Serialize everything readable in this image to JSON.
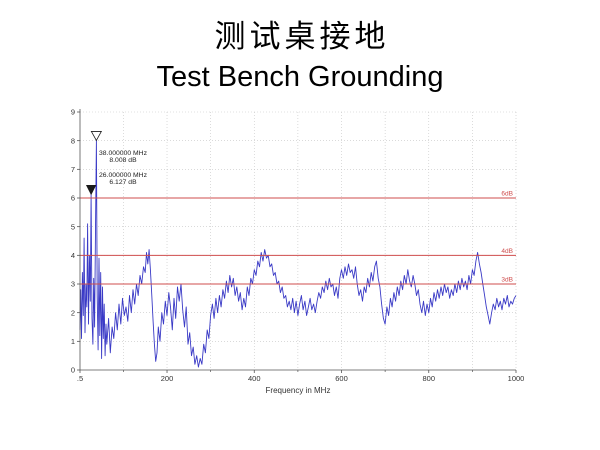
{
  "slide": {
    "title_cn": "测试桌接地",
    "title_en": "Test Bench Grounding"
  },
  "colors": {
    "trace": "#3a3ac6",
    "threshold": "#cf4d4d",
    "grid": "#c4c4c4",
    "axis": "#555555",
    "marker": "#1a1a1a"
  },
  "chart_data": {
    "type": "line",
    "xlabel": "Frequency in MHz",
    "xlim": [
      0.5,
      1000
    ],
    "ylim": [
      0,
      9
    ],
    "grid": true,
    "x_ticks": [
      {
        "value": 0.5,
        "label": ".5"
      },
      {
        "value": 200,
        "label": "200"
      },
      {
        "value": 400,
        "label": "400"
      },
      {
        "value": 600,
        "label": "600"
      },
      {
        "value": 800,
        "label": "800"
      },
      {
        "value": 1000,
        "label": "1000"
      }
    ],
    "y_ticks": [
      {
        "value": 0,
        "label": "0"
      },
      {
        "value": 1,
        "label": "1"
      },
      {
        "value": 2,
        "label": "2"
      },
      {
        "value": 3,
        "label": "3"
      },
      {
        "value": 4,
        "label": "4"
      },
      {
        "value": 5,
        "label": "5"
      },
      {
        "value": 6,
        "label": "6"
      },
      {
        "value": 7,
        "label": "7"
      },
      {
        "value": 8,
        "label": "8"
      },
      {
        "value": 9,
        "label": "9"
      }
    ],
    "threshold_lines": [
      {
        "value": 6,
        "label": "6dB"
      },
      {
        "value": 4,
        "label": "4dB"
      },
      {
        "value": 3,
        "label": "3dB"
      }
    ],
    "markers": [
      {
        "x": 38,
        "y": 8.008,
        "freq_label": "38.000000 MHz",
        "level_label": "8.008 dB",
        "icon": "triangle-down-outline"
      },
      {
        "x": 26,
        "y": 6.127,
        "freq_label": "26.000000 MHz",
        "level_label": "6.127 dB",
        "icon": "triangle-down-filled"
      }
    ],
    "points": [
      [
        0.5,
        1.4
      ],
      [
        2,
        2.8
      ],
      [
        4,
        1.1
      ],
      [
        6,
        3.4
      ],
      [
        8,
        1.9
      ],
      [
        10,
        4.6
      ],
      [
        12,
        1.3
      ],
      [
        14,
        3.0
      ],
      [
        16,
        2.2
      ],
      [
        18,
        5.1
      ],
      [
        20,
        1.6
      ],
      [
        22,
        4.0
      ],
      [
        24,
        2.4
      ],
      [
        26,
        6.127
      ],
      [
        28,
        1.8
      ],
      [
        30,
        0.9
      ],
      [
        32,
        3.2
      ],
      [
        34,
        1.5
      ],
      [
        36,
        4.9
      ],
      [
        38,
        8.008
      ],
      [
        40,
        2.6
      ],
      [
        42,
        0.7
      ],
      [
        44,
        3.9
      ],
      [
        46,
        1.2
      ],
      [
        48,
        3.4
      ],
      [
        50,
        0.4
      ],
      [
        52,
        2.9
      ],
      [
        54,
        1.1
      ],
      [
        56,
        2.3
      ],
      [
        58,
        0.5
      ],
      [
        60,
        1.6
      ],
      [
        62,
        0.9
      ],
      [
        66,
        1.8
      ],
      [
        70,
        0.6
      ],
      [
        74,
        1.5
      ],
      [
        78,
        1.1
      ],
      [
        82,
        2.0
      ],
      [
        86,
        1.4
      ],
      [
        90,
        2.3
      ],
      [
        94,
        1.6
      ],
      [
        98,
        2.5
      ],
      [
        102,
        1.9
      ],
      [
        106,
        2.2
      ],
      [
        110,
        1.7
      ],
      [
        114,
        2.6
      ],
      [
        118,
        2.0
      ],
      [
        122,
        2.8
      ],
      [
        126,
        2.3
      ],
      [
        130,
        3.0
      ],
      [
        134,
        2.6
      ],
      [
        138,
        3.3
      ],
      [
        142,
        3.0
      ],
      [
        146,
        3.6
      ],
      [
        150,
        3.4
      ],
      [
        153,
        4.1
      ],
      [
        156,
        3.7
      ],
      [
        159,
        4.2
      ],
      [
        162,
        3.5
      ],
      [
        165,
        2.6
      ],
      [
        168,
        1.7
      ],
      [
        171,
        0.9
      ],
      [
        174,
        0.3
      ],
      [
        177,
        0.6
      ],
      [
        180,
        1.5
      ],
      [
        184,
        1.0
      ],
      [
        188,
        2.0
      ],
      [
        192,
        1.6
      ],
      [
        196,
        2.4
      ],
      [
        200,
        1.9
      ],
      [
        204,
        2.7
      ],
      [
        208,
        2.2
      ],
      [
        212,
        1.4
      ],
      [
        216,
        2.5
      ],
      [
        220,
        1.8
      ],
      [
        224,
        2.9
      ],
      [
        228,
        2.4
      ],
      [
        232,
        3.0
      ],
      [
        236,
        2.1
      ],
      [
        240,
        1.5
      ],
      [
        244,
        2.2
      ],
      [
        248,
        0.9
      ],
      [
        252,
        1.3
      ],
      [
        256,
        0.5
      ],
      [
        260,
        0.8
      ],
      [
        264,
        0.2
      ],
      [
        268,
        0.5
      ],
      [
        272,
        0.1
      ],
      [
        276,
        0.4
      ],
      [
        280,
        0.2
      ],
      [
        284,
        0.9
      ],
      [
        288,
        0.6
      ],
      [
        292,
        1.4
      ],
      [
        296,
        1.1
      ],
      [
        300,
        1.9
      ],
      [
        304,
        2.3
      ],
      [
        308,
        1.8
      ],
      [
        312,
        2.5
      ],
      [
        316,
        2.0
      ],
      [
        320,
        2.6
      ],
      [
        324,
        2.2
      ],
      [
        328,
        2.8
      ],
      [
        332,
        2.5
      ],
      [
        336,
        3.1
      ],
      [
        340,
        2.7
      ],
      [
        344,
        3.3
      ],
      [
        348,
        2.9
      ],
      [
        352,
        3.2
      ],
      [
        356,
        2.6
      ],
      [
        360,
        2.9
      ],
      [
        364,
        2.4
      ],
      [
        368,
        2.7
      ],
      [
        372,
        2.1
      ],
      [
        376,
        2.5
      ],
      [
        380,
        2.2
      ],
      [
        384,
        2.9
      ],
      [
        388,
        2.6
      ],
      [
        392,
        3.2
      ],
      [
        396,
        3.0
      ],
      [
        400,
        3.5
      ],
      [
        404,
        3.3
      ],
      [
        408,
        3.8
      ],
      [
        412,
        3.6
      ],
      [
        416,
        4.1
      ],
      [
        420,
        3.8
      ],
      [
        424,
        4.2
      ],
      [
        428,
        3.9
      ],
      [
        432,
        4.0
      ],
      [
        436,
        3.6
      ],
      [
        440,
        3.7
      ],
      [
        444,
        3.3
      ],
      [
        448,
        3.4
      ],
      [
        452,
        3.0
      ],
      [
        456,
        3.1
      ],
      [
        460,
        2.7
      ],
      [
        464,
        2.9
      ],
      [
        468,
        2.5
      ],
      [
        472,
        2.6
      ],
      [
        476,
        2.2
      ],
      [
        480,
        2.4
      ],
      [
        484,
        2.1
      ],
      [
        488,
        2.5
      ],
      [
        492,
        2.0
      ],
      [
        496,
        2.4
      ],
      [
        500,
        1.9
      ],
      [
        504,
        2.3
      ],
      [
        508,
        2.6
      ],
      [
        512,
        2.1
      ],
      [
        516,
        2.4
      ],
      [
        520,
        1.9
      ],
      [
        524,
        2.2
      ],
      [
        528,
        2.5
      ],
      [
        532,
        2.1
      ],
      [
        536,
        2.3
      ],
      [
        540,
        2.0
      ],
      [
        544,
        2.4
      ],
      [
        548,
        2.7
      ],
      [
        552,
        2.5
      ],
      [
        556,
        2.9
      ],
      [
        560,
        2.7
      ],
      [
        564,
        3.1
      ],
      [
        568,
        2.8
      ],
      [
        572,
        3.2
      ],
      [
        576,
        2.9
      ],
      [
        580,
        3.0
      ],
      [
        584,
        2.6
      ],
      [
        588,
        2.9
      ],
      [
        592,
        2.5
      ],
      [
        596,
        3.2
      ],
      [
        600,
        3.5
      ],
      [
        604,
        3.2
      ],
      [
        608,
        3.6
      ],
      [
        612,
        3.3
      ],
      [
        616,
        3.7
      ],
      [
        620,
        3.4
      ],
      [
        624,
        3.5
      ],
      [
        628,
        3.2
      ],
      [
        632,
        3.6
      ],
      [
        636,
        3.0
      ],
      [
        640,
        2.6
      ],
      [
        644,
        2.8
      ],
      [
        648,
        2.4
      ],
      [
        652,
        2.9
      ],
      [
        656,
        2.7
      ],
      [
        660,
        3.2
      ],
      [
        664,
        2.9
      ],
      [
        668,
        3.4
      ],
      [
        672,
        3.1
      ],
      [
        676,
        3.6
      ],
      [
        680,
        3.8
      ],
      [
        684,
        3.2
      ],
      [
        688,
        2.9
      ],
      [
        692,
        2.3
      ],
      [
        696,
        1.8
      ],
      [
        700,
        1.6
      ],
      [
        704,
        2.2
      ],
      [
        708,
        1.9
      ],
      [
        712,
        2.5
      ],
      [
        716,
        2.2
      ],
      [
        720,
        2.7
      ],
      [
        724,
        2.4
      ],
      [
        728,
        2.9
      ],
      [
        732,
        2.6
      ],
      [
        736,
        3.1
      ],
      [
        740,
        2.8
      ],
      [
        744,
        3.3
      ],
      [
        748,
        3.0
      ],
      [
        752,
        3.5
      ],
      [
        756,
        3.1
      ],
      [
        760,
        2.9
      ],
      [
        764,
        3.3
      ],
      [
        768,
        3.0
      ],
      [
        772,
        2.6
      ],
      [
        776,
        2.8
      ],
      [
        780,
        2.3
      ],
      [
        784,
        2.0
      ],
      [
        788,
        2.4
      ],
      [
        792,
        1.9
      ],
      [
        796,
        2.3
      ],
      [
        800,
        2.0
      ],
      [
        804,
        2.5
      ],
      [
        808,
        2.2
      ],
      [
        812,
        2.7
      ],
      [
        816,
        2.4
      ],
      [
        820,
        2.8
      ],
      [
        824,
        2.5
      ],
      [
        828,
        2.9
      ],
      [
        832,
        2.6
      ],
      [
        836,
        3.0
      ],
      [
        840,
        2.7
      ],
      [
        844,
        2.9
      ],
      [
        848,
        2.5
      ],
      [
        852,
        2.8
      ],
      [
        856,
        2.6
      ],
      [
        860,
        3.0
      ],
      [
        864,
        2.7
      ],
      [
        868,
        3.1
      ],
      [
        872,
        2.8
      ],
      [
        876,
        3.2
      ],
      [
        880,
        2.9
      ],
      [
        884,
        3.1
      ],
      [
        888,
        2.8
      ],
      [
        892,
        3.3
      ],
      [
        896,
        3.0
      ],
      [
        900,
        3.5
      ],
      [
        904,
        3.3
      ],
      [
        908,
        3.8
      ],
      [
        912,
        4.1
      ],
      [
        916,
        3.7
      ],
      [
        920,
        3.4
      ],
      [
        924,
        3.0
      ],
      [
        928,
        2.6
      ],
      [
        932,
        2.2
      ],
      [
        936,
        1.9
      ],
      [
        940,
        1.6
      ],
      [
        944,
        2.0
      ],
      [
        948,
        2.3
      ],
      [
        952,
        2.1
      ],
      [
        956,
        2.5
      ],
      [
        960,
        2.2
      ],
      [
        964,
        2.4
      ],
      [
        968,
        2.1
      ],
      [
        972,
        2.5
      ],
      [
        976,
        2.3
      ],
      [
        980,
        2.6
      ],
      [
        984,
        2.2
      ],
      [
        988,
        2.4
      ],
      [
        992,
        2.3
      ],
      [
        996,
        2.5
      ],
      [
        1000,
        2.6
      ]
    ]
  }
}
